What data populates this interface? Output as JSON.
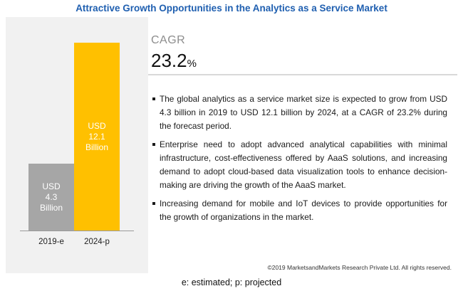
{
  "title": "Attractive Growth Opportunities in the Analytics as a Service Market",
  "cagr": {
    "label": "CAGR",
    "value": "23.2",
    "unit": "%"
  },
  "bullets": [
    "The global analytics as a service market size is expected to grow from USD 4.3 billion in 2019 to USD 12.1 billion by 2024, at a CAGR of 23.2% during the forecast period.",
    "Enterprise need to adopt advanced analytical capabilities with minimal infrastructure, cost-effectiveness offered by AaaS solutions, and increasing demand to adopt cloud-based data visualization tools to enhance decision-making are driving the growth of the AaaS market.",
    "Increasing demand for mobile and IoT devices to provide opportunities for the growth of organizations in the market."
  ],
  "copyright": "©2019 MarketsandMarkets Research Private Ltd. All rights reserved.",
  "footnote": "e: estimated; p: projected",
  "colors": {
    "title": "#1f5fb0",
    "bar_2019": "#a6a6a6",
    "bar_2024": "#ffc000",
    "panel_bg": "#f1f1f1"
  },
  "chart_data": {
    "type": "bar",
    "categories": [
      "2019-e",
      "2024-p"
    ],
    "values": [
      4.3,
      12.1
    ],
    "data_labels": [
      [
        "USD",
        "4.3",
        "Billion"
      ],
      [
        "USD",
        "12.1",
        "Billion"
      ]
    ],
    "units": "USD Billion",
    "ylim": [
      0,
      12.1
    ],
    "grid": false,
    "legend": "none"
  }
}
